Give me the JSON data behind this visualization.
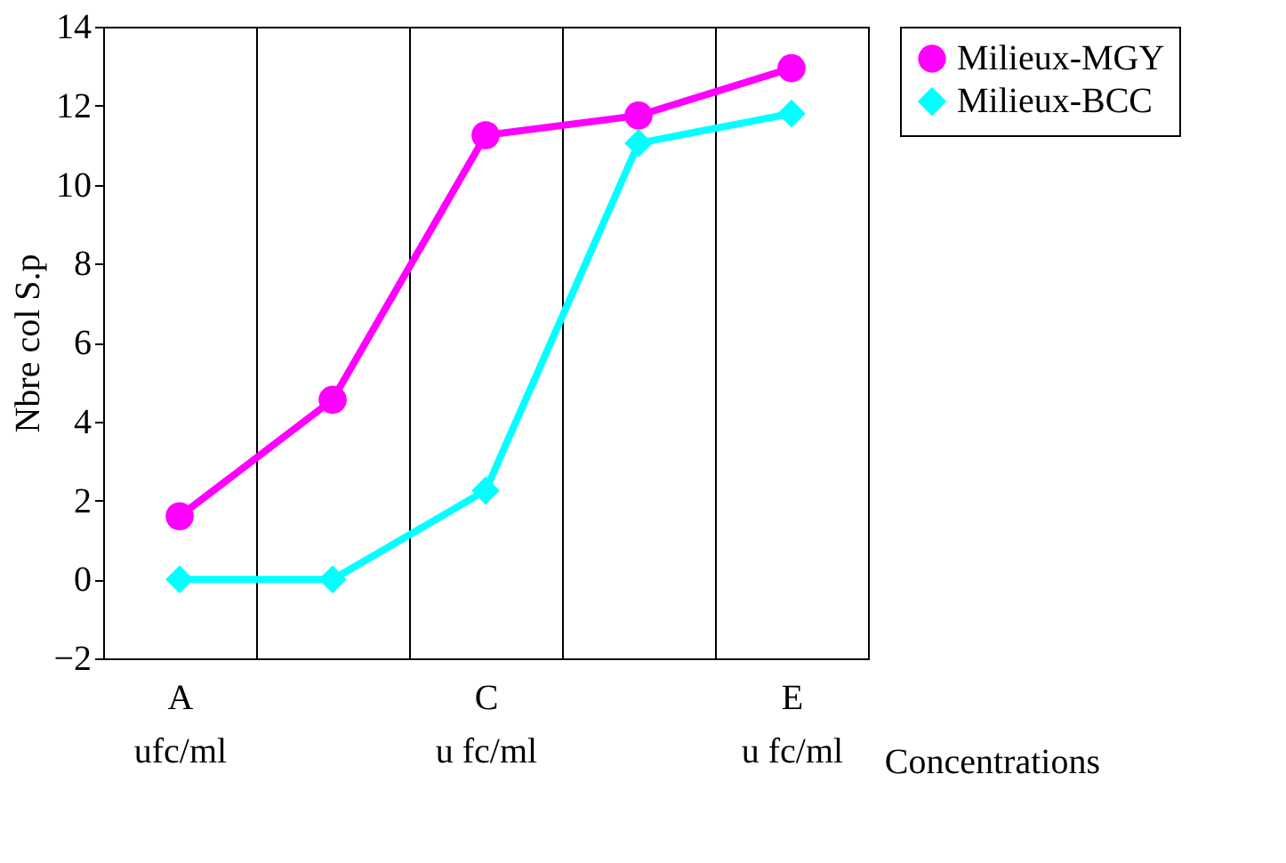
{
  "chart_data": {
    "type": "line",
    "categories": [
      "A\nufc/ml",
      null,
      "C\nu fc/ml",
      null,
      "E\nu fc/ml"
    ],
    "series": [
      {
        "name": "Milieux-MGY",
        "color": "#ff00ff",
        "marker": "circle",
        "values": [
          1.6,
          4.55,
          11.25,
          11.75,
          12.95
        ]
      },
      {
        "name": "Milieux-BCC",
        "color": "#00ffff",
        "marker": "diamond",
        "values": [
          0,
          0,
          2.25,
          11.05,
          11.8
        ]
      }
    ],
    "xlabel": "Concentrations",
    "ylabel": "Nbre col S.p",
    "ylim": [
      -2,
      14
    ],
    "yticks": [
      -2,
      0,
      2,
      4,
      6,
      8,
      10,
      12,
      14
    ],
    "grid": "x",
    "legend": "right",
    "line_style": "solid"
  }
}
